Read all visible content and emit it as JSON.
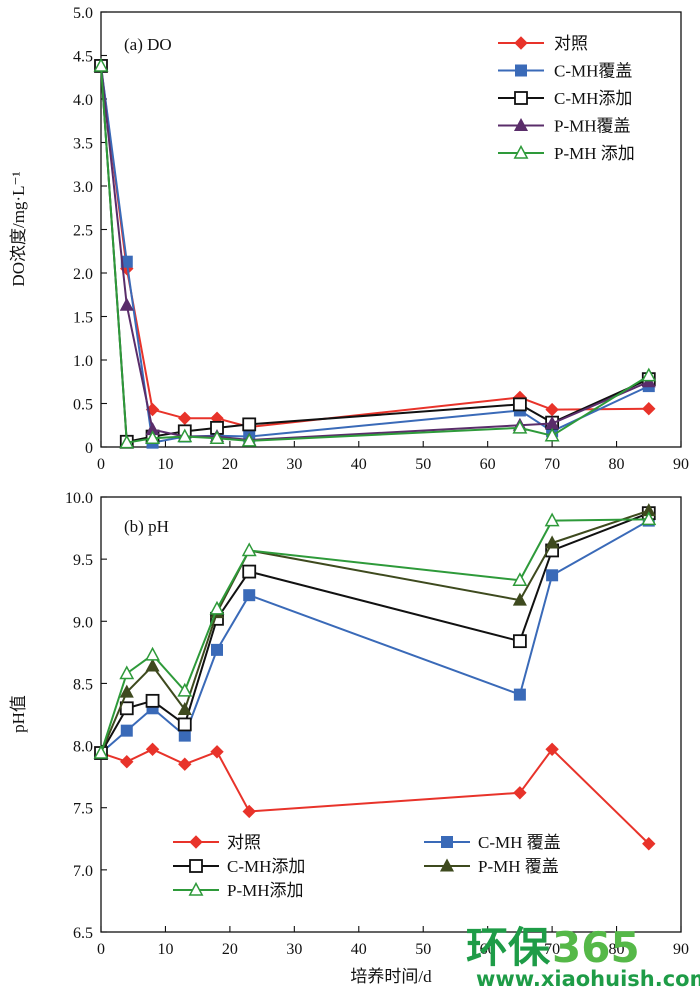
{
  "chart_data": [
    {
      "type": "line",
      "panel_label": "(a) DO",
      "ylabel": "DO浓度/mg·L⁻¹",
      "xlabel": "",
      "xlim": [
        0,
        90
      ],
      "ylim": [
        0,
        5.0
      ],
      "xticks": [
        0,
        10,
        20,
        30,
        40,
        50,
        60,
        70,
        80,
        90
      ],
      "xtick_labels": [
        "0",
        "10",
        "20",
        "30",
        "40",
        "50",
        "60",
        "70",
        "80",
        "90"
      ],
      "yticks": [
        0,
        0.5,
        1.0,
        1.5,
        2.0,
        2.5,
        3.0,
        3.5,
        4.0,
        4.5,
        5.0
      ],
      "ytick_labels": [
        "0",
        "0.5",
        "1.0",
        "1.5",
        "2.0",
        "2.5",
        "3.0",
        "3.5",
        "4.0",
        "4.5",
        "5.0"
      ],
      "grid": false,
      "legend_position": "top-right",
      "series": [
        {
          "name": "对照",
          "color": "#e8332a",
          "marker": "diamond",
          "x": [
            0,
            4,
            8,
            13,
            18,
            23,
            65,
            70,
            85
          ],
          "y": [
            4.38,
            2.05,
            0.43,
            0.33,
            0.33,
            0.23,
            0.57,
            0.43,
            0.44
          ]
        },
        {
          "name": "C-MH覆盖",
          "color": "#3a6ab8",
          "marker": "square",
          "x": [
            0,
            4,
            8,
            13,
            18,
            23,
            65,
            70,
            85
          ],
          "y": [
            4.38,
            2.13,
            0.05,
            0.12,
            0.13,
            0.12,
            0.42,
            0.18,
            0.7
          ]
        },
        {
          "name": "C-MH添加",
          "color": "#111111",
          "marker": "open-square",
          "x": [
            0,
            4,
            8,
            13,
            18,
            23,
            65,
            70,
            85
          ],
          "y": [
            4.38,
            0.06,
            0.12,
            0.18,
            0.22,
            0.26,
            0.49,
            0.28,
            0.78
          ]
        },
        {
          "name": "P-MH覆盖",
          "color": "#5a2d6a",
          "marker": "triangle",
          "x": [
            0,
            4,
            8,
            13,
            18,
            23,
            65,
            70,
            85
          ],
          "y": [
            4.38,
            1.63,
            0.2,
            0.12,
            0.12,
            0.08,
            0.25,
            0.27,
            0.75
          ]
        },
        {
          "name": "P-MH 添加",
          "color": "#2e9a3a",
          "marker": "open-triangle",
          "x": [
            0,
            4,
            8,
            13,
            18,
            23,
            65,
            70,
            85
          ],
          "y": [
            4.38,
            0.05,
            0.1,
            0.12,
            0.1,
            0.07,
            0.22,
            0.13,
            0.82
          ]
        }
      ]
    },
    {
      "type": "line",
      "panel_label": "(b) pH",
      "ylabel": "pH值",
      "xlabel": "培养时间/d",
      "xlim": [
        0,
        90
      ],
      "ylim": [
        6.5,
        10.0
      ],
      "xticks": [
        0,
        10,
        20,
        30,
        40,
        50,
        60,
        70,
        80,
        90
      ],
      "xtick_labels": [
        "0",
        "10",
        "20",
        "30",
        "40",
        "50",
        "60",
        "70",
        "80",
        "90"
      ],
      "yticks": [
        6.5,
        7.0,
        7.5,
        8.0,
        8.5,
        9.0,
        9.5,
        10.0
      ],
      "ytick_labels": [
        "6.5",
        "7.0",
        "7.5",
        "8.0",
        "8.5",
        "9.0",
        "9.5",
        "10.0"
      ],
      "grid": false,
      "legend_position": "bottom",
      "series": [
        {
          "name": "对照",
          "color": "#e8332a",
          "marker": "diamond",
          "x": [
            0,
            4,
            8,
            13,
            18,
            23,
            65,
            70,
            85
          ],
          "y": [
            7.94,
            7.87,
            7.97,
            7.85,
            7.95,
            7.47,
            7.62,
            7.97,
            7.21
          ]
        },
        {
          "name": "C-MH 覆盖",
          "color": "#3a6ab8",
          "marker": "square",
          "x": [
            0,
            4,
            8,
            13,
            18,
            23,
            65,
            70,
            85
          ],
          "y": [
            7.94,
            8.12,
            8.3,
            8.08,
            8.77,
            9.21,
            8.41,
            9.37,
            9.81
          ]
        },
        {
          "name": "C-MH添加",
          "color": "#111111",
          "marker": "open-square",
          "x": [
            0,
            4,
            8,
            13,
            18,
            23,
            65,
            70,
            85
          ],
          "y": [
            7.94,
            8.3,
            8.36,
            8.17,
            9.02,
            9.4,
            8.84,
            9.57,
            9.87
          ]
        },
        {
          "name": "P-MH 覆盖",
          "color": "#3e4a1e",
          "marker": "triangle",
          "x": [
            0,
            4,
            8,
            13,
            18,
            23,
            65,
            70,
            85
          ],
          "y": [
            7.94,
            8.43,
            8.64,
            8.29,
            9.07,
            9.57,
            9.17,
            9.63,
            9.89
          ]
        },
        {
          "name": "P-MH添加",
          "color": "#2e9a3a",
          "marker": "open-triangle",
          "x": [
            0,
            4,
            8,
            13,
            18,
            23,
            65,
            70,
            85
          ],
          "y": [
            7.94,
            8.58,
            8.73,
            8.44,
            9.1,
            9.57,
            9.33,
            9.81,
            9.82
          ]
        }
      ]
    }
  ],
  "watermark": {
    "brand_a": "环保",
    "brand_b": "365",
    "url": "www.xiaohuish.com",
    "color_a": "#1e9c47",
    "color_b": "#55b848"
  }
}
